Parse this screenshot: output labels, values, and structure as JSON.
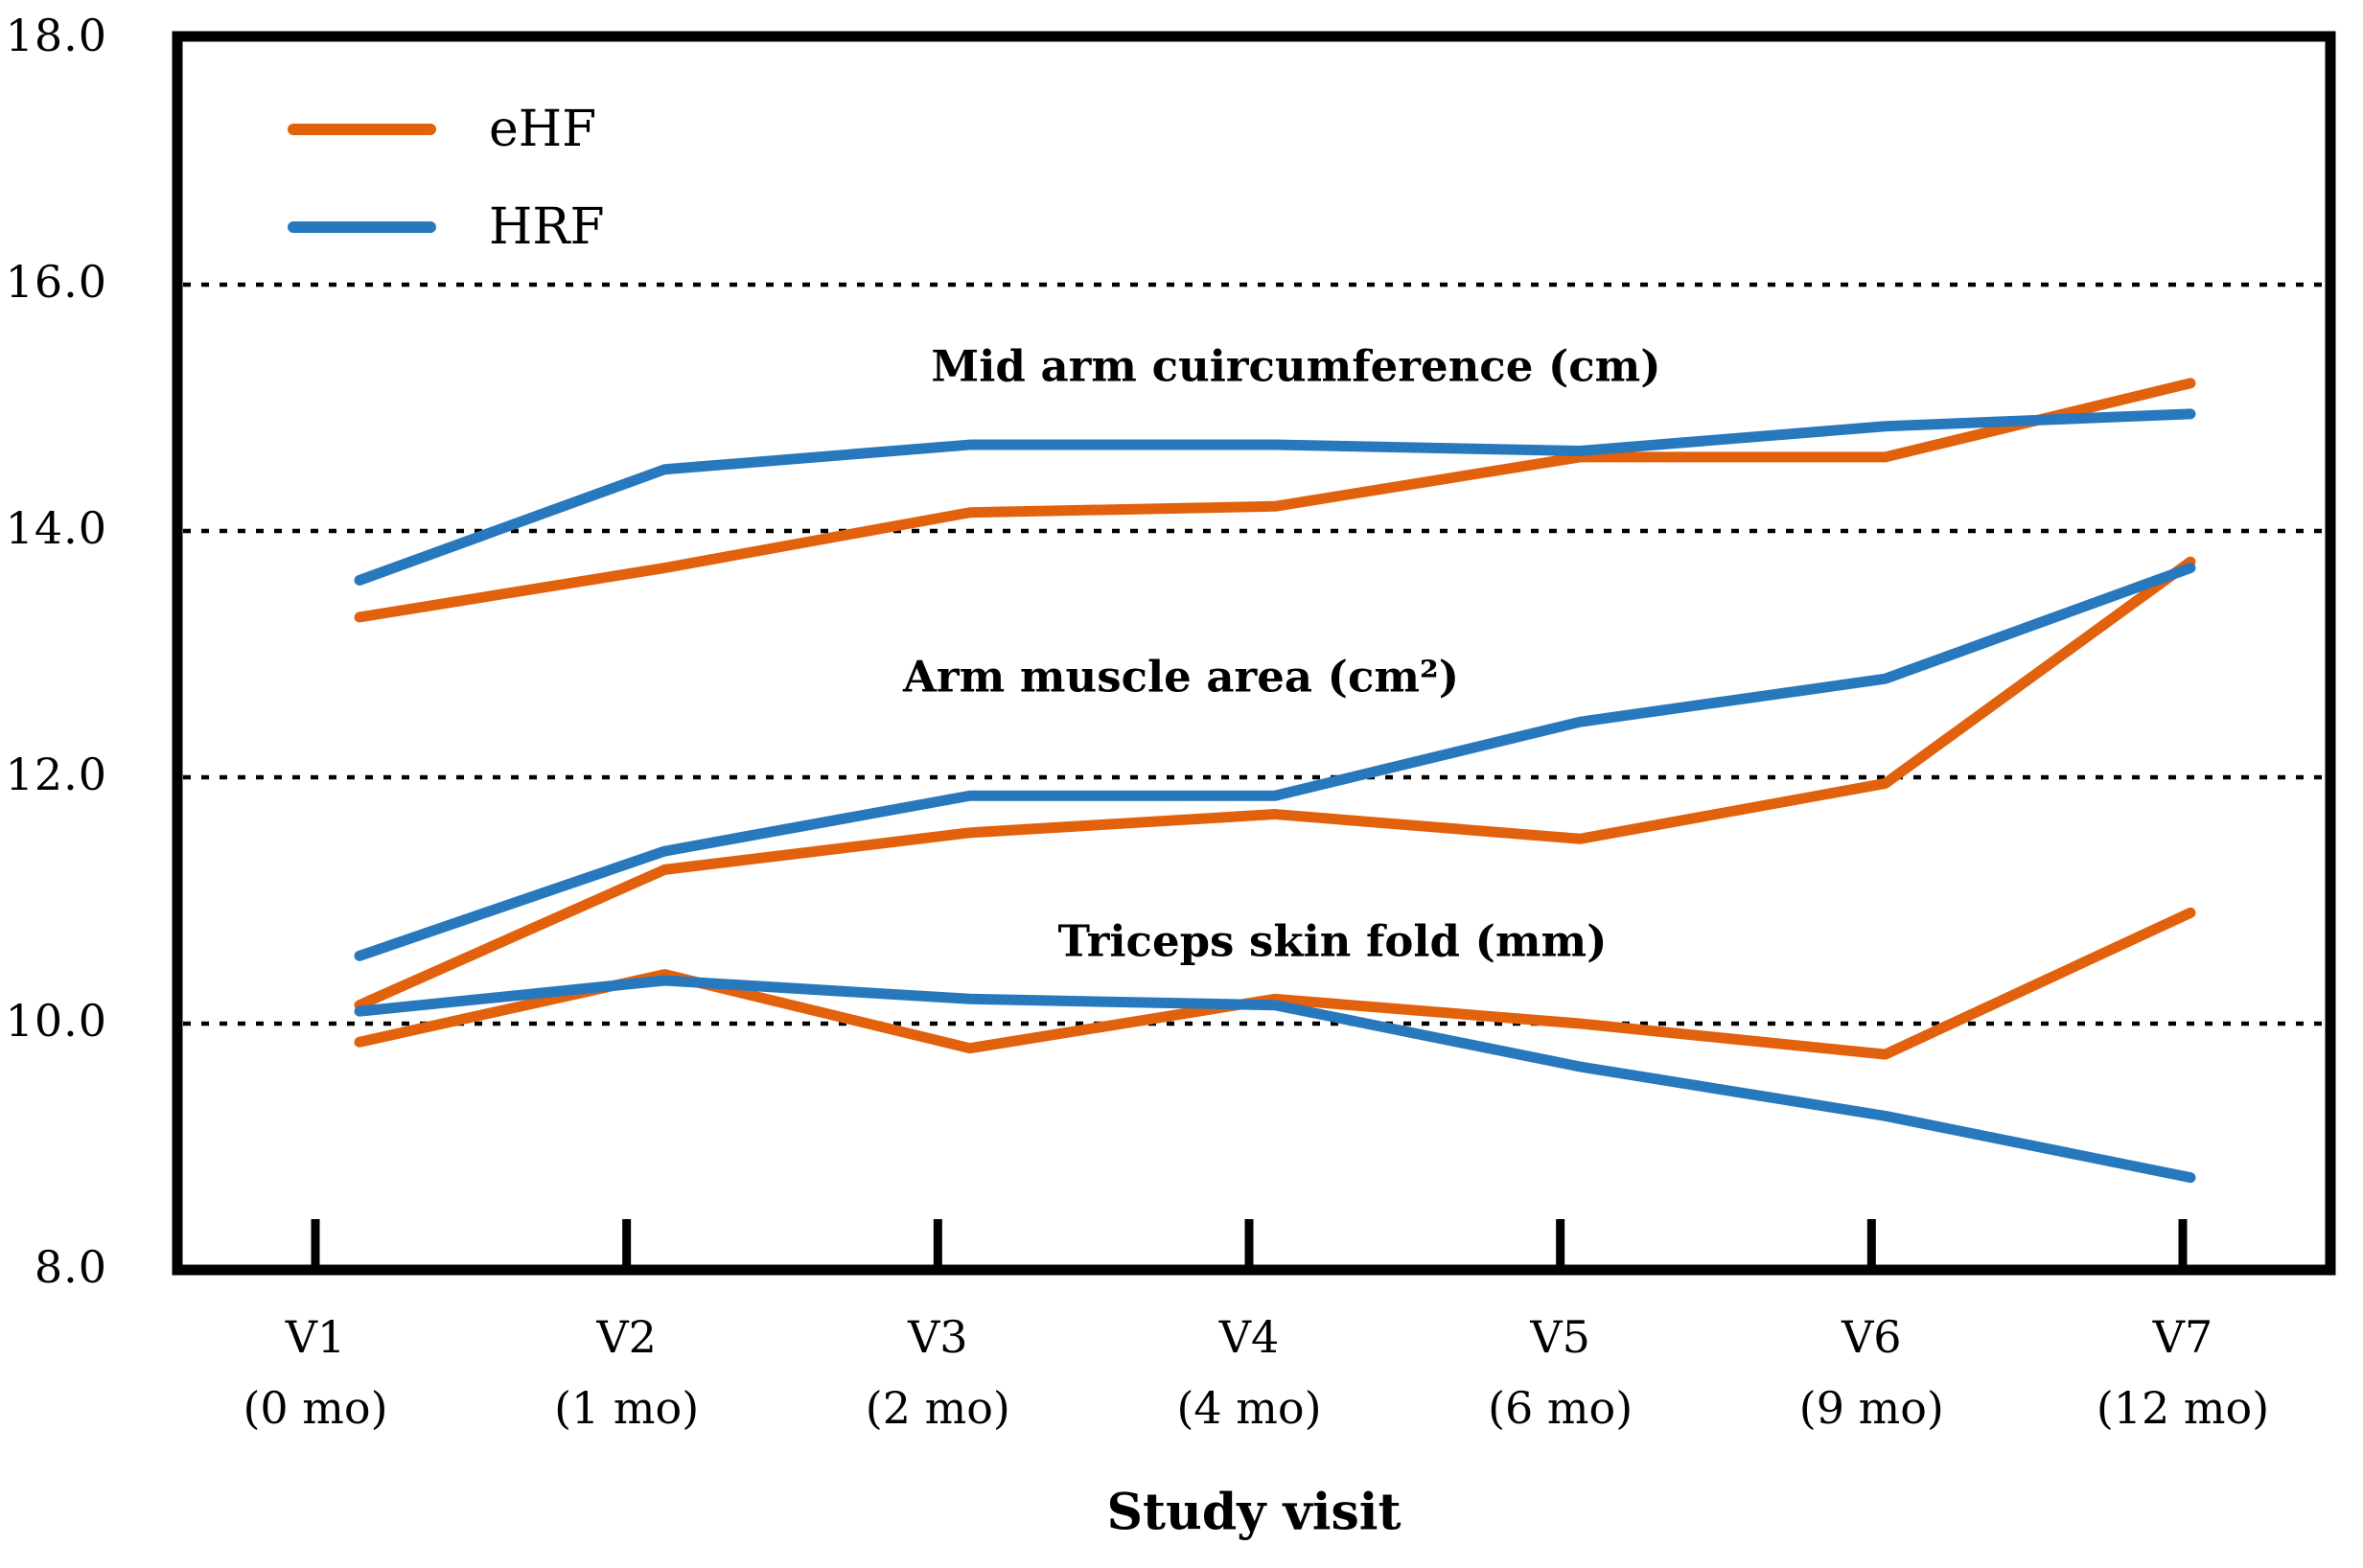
{
  "chart_data": {
    "type": "line",
    "xlabel": "Study visit",
    "ylim": [
      8,
      18
    ],
    "y_tick_labels": [
      "8.0",
      "10.0",
      "12.0",
      "14.0",
      "16.0",
      "18.0"
    ],
    "y_tick_values": [
      8,
      10,
      12,
      14,
      16,
      18
    ],
    "gridline_values": [
      10,
      12,
      14,
      16
    ],
    "grid_style": "dotted-horizontal",
    "legend_position": "top-left-inside",
    "legend": [
      {
        "label": "eHF",
        "color": "#E2610C"
      },
      {
        "label": "HRF",
        "color": "#2878BD"
      }
    ],
    "categories": [
      {
        "visit": "V1",
        "month": "(0 mo)"
      },
      {
        "visit": "V2",
        "month": "(1 mo)"
      },
      {
        "visit": "V3",
        "month": "(2 mo)"
      },
      {
        "visit": "V4",
        "month": "(4 mo)"
      },
      {
        "visit": "V5",
        "month": "(6 mo)"
      },
      {
        "visit": "V6",
        "month": "(9 mo)"
      },
      {
        "visit": "V7",
        "month": "(12 mo)"
      }
    ],
    "groups": [
      {
        "label": "Mid arm cuircumference (cm)",
        "series": [
          {
            "name": "eHF",
            "color": "#E2610C",
            "values": [
              13.3,
              13.7,
              14.15,
              14.2,
              14.6,
              14.6,
              15.2
            ]
          },
          {
            "name": "HRF",
            "color": "#2878BD",
            "values": [
              13.6,
              14.5,
              14.7,
              14.7,
              14.65,
              14.85,
              14.95
            ]
          }
        ]
      },
      {
        "label": "Arm muscle area (cm²)",
        "series": [
          {
            "name": "eHF",
            "color": "#E2610C",
            "values": [
              10.15,
              11.25,
              11.55,
              11.7,
              11.5,
              11.95,
              13.75
            ]
          },
          {
            "name": "HRF",
            "color": "#2878BD",
            "values": [
              10.55,
              11.4,
              11.85,
              11.85,
              12.45,
              12.8,
              13.7
            ]
          }
        ]
      },
      {
        "label": "Triceps skin fold (mm)",
        "series": [
          {
            "name": "eHF",
            "color": "#E2610C",
            "values": [
              9.85,
              10.4,
              9.8,
              10.2,
              10.0,
              9.75,
              10.9
            ]
          },
          {
            "name": "HRF",
            "color": "#2878BD",
            "values": [
              10.1,
              10.35,
              10.2,
              10.15,
              9.65,
              9.25,
              8.75
            ]
          }
        ]
      }
    ]
  },
  "colors": {
    "axis": "#000000",
    "background": "#ffffff"
  }
}
